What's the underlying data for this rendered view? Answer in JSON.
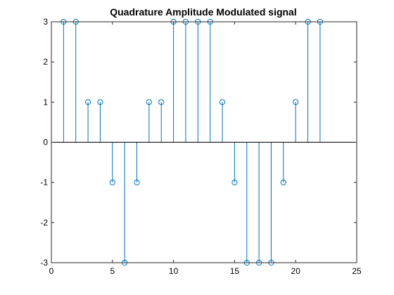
{
  "chart_data": {
    "type": "stem",
    "title": "Quadrature Amplitude Modulated signal",
    "xlabel": "",
    "ylabel": "",
    "xlim": [
      0,
      25
    ],
    "ylim": [
      -3,
      3
    ],
    "xticks": [
      0,
      5,
      10,
      15,
      20,
      25
    ],
    "yticks": [
      -3,
      -2,
      -1,
      0,
      1,
      2,
      3
    ],
    "xtick_labels": [
      "0",
      "5",
      "10",
      "15",
      "20",
      "25"
    ],
    "ytick_labels": [
      "-3",
      "-2",
      "-1",
      "0",
      "1",
      "2",
      "3"
    ],
    "baseline": 0,
    "grid": false,
    "color": "#0072BD",
    "x": [
      1,
      2,
      3,
      4,
      5,
      6,
      7,
      8,
      9,
      10,
      11,
      12,
      13,
      14,
      15,
      16,
      17,
      18,
      19,
      20,
      21,
      22
    ],
    "values": [
      3,
      3,
      1,
      1,
      -1,
      -3,
      -1,
      1,
      1,
      3,
      3,
      3,
      3,
      1,
      -1,
      -3,
      -3,
      -3,
      -1,
      1,
      3,
      3
    ]
  }
}
